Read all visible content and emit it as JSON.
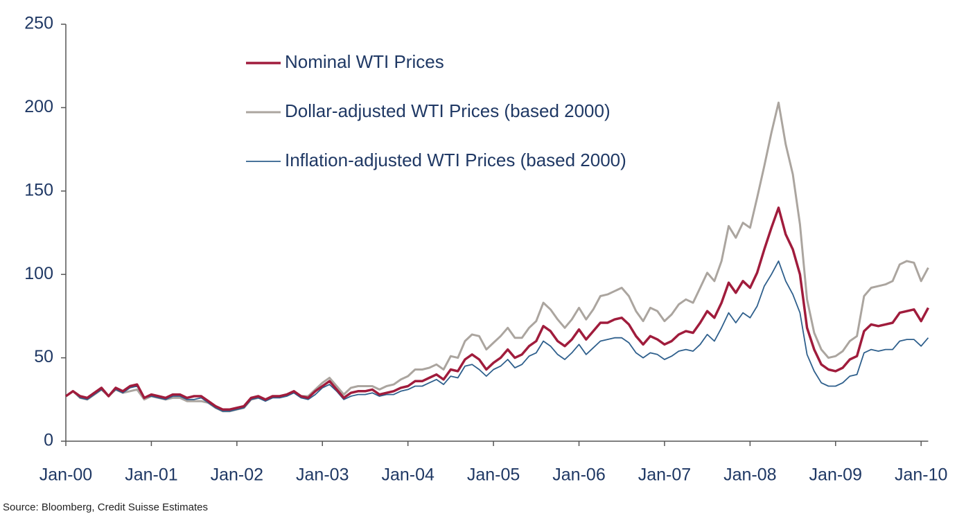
{
  "chart_data": {
    "type": "line",
    "source": "Source: Bloomberg, Credit Suisse Estimates",
    "categories": [
      "Jan-00",
      null,
      null,
      null,
      null,
      null,
      null,
      null,
      null,
      null,
      null,
      null,
      "Jan-01",
      null,
      null,
      null,
      null,
      null,
      null,
      null,
      null,
      null,
      null,
      null,
      "Jan-02",
      null,
      null,
      null,
      null,
      null,
      null,
      null,
      null,
      null,
      null,
      null,
      "Jan-03",
      null,
      null,
      null,
      null,
      null,
      null,
      null,
      null,
      null,
      null,
      null,
      "Jan-04",
      null,
      null,
      null,
      null,
      null,
      null,
      null,
      null,
      null,
      null,
      null,
      "Jan-05",
      null,
      null,
      null,
      null,
      null,
      null,
      null,
      null,
      null,
      null,
      null,
      "Jan-06",
      null,
      null,
      null,
      null,
      null,
      null,
      null,
      null,
      null,
      null,
      null,
      "Jan-07",
      null,
      null,
      null,
      null,
      null,
      null,
      null,
      null,
      null,
      null,
      null,
      "Jan-08",
      null,
      null,
      null,
      null,
      null,
      null,
      null,
      null,
      null,
      null,
      null,
      "Jan-09",
      null,
      null,
      null,
      null,
      null,
      null,
      null,
      null,
      null,
      null,
      null,
      "Jan-10",
      null
    ],
    "series": [
      {
        "name": "Nominal WTI Prices",
        "color": "#a01c3c",
        "width": 3.5,
        "values": [
          27,
          30,
          27,
          26,
          29,
          32,
          27,
          32,
          30,
          33,
          34,
          26,
          28,
          27,
          26,
          28,
          28,
          26,
          27,
          27,
          24,
          21,
          19,
          19,
          20,
          21,
          26,
          27,
          25,
          27,
          27,
          28,
          30,
          27,
          26,
          30,
          33,
          36,
          31,
          26,
          29,
          30,
          30,
          31,
          28,
          29,
          30,
          32,
          33,
          36,
          36,
          38,
          40,
          37,
          43,
          42,
          49,
          52,
          49,
          43,
          47,
          50,
          55,
          50,
          52,
          57,
          60,
          69,
          66,
          60,
          57,
          61,
          67,
          61,
          66,
          71,
          71,
          73,
          74,
          70,
          63,
          58,
          63,
          61,
          58,
          60,
          64,
          66,
          65,
          71,
          78,
          74,
          83,
          95,
          89,
          96,
          92,
          101,
          115,
          128,
          140,
          124,
          115,
          100,
          68,
          55,
          46,
          43,
          42,
          44,
          49,
          51,
          66,
          70,
          69,
          70,
          71,
          77,
          78,
          79,
          72,
          80
        ]
      },
      {
        "name": "Dollar-adjusted WTI Prices (based 2000)",
        "color": "#aba59f",
        "width": 3,
        "values": [
          27,
          30,
          26,
          25,
          28,
          31,
          27,
          31,
          29,
          30,
          31,
          25,
          27,
          26,
          25,
          26,
          26,
          24,
          24,
          24,
          23,
          20,
          18,
          18,
          19,
          20,
          25,
          26,
          25,
          27,
          27,
          28,
          30,
          27,
          27,
          31,
          35,
          38,
          33,
          28,
          32,
          33,
          33,
          33,
          31,
          33,
          34,
          37,
          39,
          43,
          43,
          44,
          46,
          43,
          51,
          50,
          60,
          64,
          63,
          55,
          59,
          63,
          68,
          62,
          62,
          68,
          72,
          83,
          79,
          73,
          68,
          73,
          80,
          73,
          79,
          87,
          88,
          90,
          92,
          87,
          78,
          72,
          80,
          78,
          72,
          76,
          82,
          85,
          83,
          92,
          101,
          96,
          108,
          129,
          122,
          131,
          128,
          146,
          165,
          185,
          203,
          178,
          160,
          130,
          85,
          65,
          55,
          50,
          51,
          54,
          60,
          63,
          87,
          92,
          93,
          94,
          96,
          106,
          108,
          107,
          96,
          104
        ]
      },
      {
        "name": "Inflation-adjusted WTI Prices (based 2000)",
        "color": "#2e5f8c",
        "width": 1.8,
        "values": [
          27,
          30,
          26,
          25,
          28,
          31,
          27,
          31,
          29,
          32,
          33,
          26,
          27,
          26,
          25,
          27,
          27,
          25,
          25,
          26,
          23,
          20,
          18,
          18,
          19,
          20,
          25,
          26,
          24,
          26,
          26,
          27,
          29,
          26,
          25,
          28,
          32,
          34,
          30,
          25,
          27,
          28,
          28,
          29,
          27,
          28,
          28,
          30,
          31,
          33,
          33,
          35,
          37,
          34,
          39,
          38,
          45,
          46,
          43,
          39,
          43,
          45,
          49,
          44,
          46,
          51,
          53,
          60,
          57,
          52,
          49,
          53,
          58,
          52,
          56,
          60,
          61,
          62,
          62,
          59,
          53,
          50,
          53,
          52,
          49,
          51,
          54,
          55,
          54,
          58,
          64,
          60,
          68,
          77,
          71,
          77,
          74,
          81,
          93,
          100,
          108,
          96,
          88,
          77,
          52,
          42,
          35,
          33,
          33,
          35,
          39,
          40,
          53,
          55,
          54,
          55,
          55,
          60,
          61,
          61,
          57,
          62
        ]
      }
    ],
    "ylim": [
      0,
      250
    ],
    "yticks": [
      0,
      50,
      100,
      150,
      200,
      250
    ],
    "grid": false,
    "legend": "top"
  }
}
